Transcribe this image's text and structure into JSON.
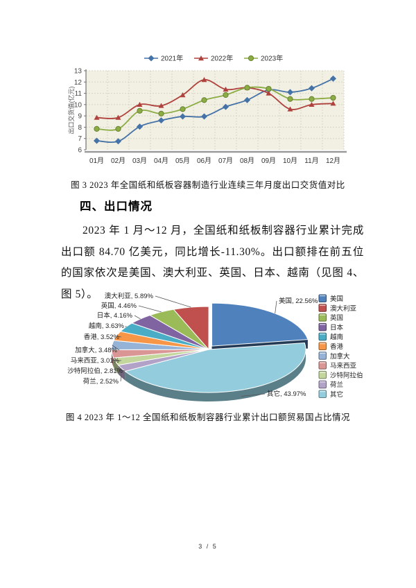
{
  "page": {
    "footer_pagenum": "3 / 5"
  },
  "figure3": {
    "caption": "图 3 2023 年全国纸和纸板容器制造行业连续三年月度出口交货值对比"
  },
  "section": {
    "heading": "四、出口情况",
    "paragraph": "2023 年 1 月～12 月，全国纸和纸板制容器行业累计完成出口额 84.70 亿美元，同比增长-11.30%。出口额排在前五位的国家依次是美国、澳大利亚、英国、日本、越南（见图 4、图 5）。"
  },
  "figure4": {
    "caption": "图 4  2023 年 1～12 全国纸和纸板制容器行业累计出口额贸易国占比情况"
  },
  "chart_data": [
    {
      "type": "line",
      "title": "",
      "ylabel": "出口交货值(亿元)",
      "categories": [
        "01月",
        "02月",
        "03月",
        "04月",
        "05月",
        "06月",
        "07月",
        "08月",
        "09月",
        "10月",
        "11月",
        "12月"
      ],
      "ylim": [
        6,
        13
      ],
      "ytick_step": 1,
      "grid": "dashed",
      "legend_position": "top",
      "plot_bg": "#F1F0E3",
      "grid_color": "#D7D5C5",
      "series": [
        {
          "name": "2021年",
          "marker": "diamond",
          "color": "#4572A7",
          "values": [
            6.8,
            6.75,
            8.05,
            8.6,
            8.95,
            8.95,
            9.8,
            10.4,
            11.3,
            11.1,
            11.45,
            12.3
          ]
        },
        {
          "name": "2022年",
          "marker": "triangle",
          "color": "#B0423E",
          "values": [
            8.85,
            8.85,
            10.0,
            9.9,
            10.85,
            12.2,
            11.35,
            11.5,
            11.0,
            9.6,
            10.0,
            10.1
          ]
        },
        {
          "name": "2023年",
          "marker": "circle",
          "color": "#8CAC44",
          "values": [
            7.85,
            7.85,
            9.45,
            9.2,
            9.6,
            10.4,
            10.85,
            11.5,
            11.4,
            10.5,
            10.5,
            10.6
          ]
        }
      ]
    },
    {
      "type": "pie",
      "style": "3d-exploded",
      "direction": "counterclockwise",
      "legend_position": "right",
      "slices": [
        {
          "label": "美国",
          "pct": 22.56,
          "color": "#4F81BD",
          "exploded": true
        },
        {
          "label": "澳大利亚",
          "pct": 5.89,
          "color": "#C0504D"
        },
        {
          "label": "英国",
          "pct": 4.46,
          "color": "#9BBB59"
        },
        {
          "label": "日本",
          "pct": 4.16,
          "color": "#8064A2"
        },
        {
          "label": "越南",
          "pct": 3.63,
          "color": "#4BACC6"
        },
        {
          "label": "香港",
          "pct": 3.52,
          "color": "#F79646"
        },
        {
          "label": "加拿大",
          "pct": 3.48,
          "color": "#95B3D7"
        },
        {
          "label": "马来西亚",
          "pct": 3.01,
          "color": "#D99694"
        },
        {
          "label": "沙特阿拉伯",
          "pct": 2.81,
          "color": "#C3D69B"
        },
        {
          "label": "荷兰",
          "pct": 2.52,
          "color": "#B3A2C7"
        },
        {
          "label": "其它",
          "pct": 43.97,
          "color": "#93CDDD"
        }
      ]
    }
  ]
}
